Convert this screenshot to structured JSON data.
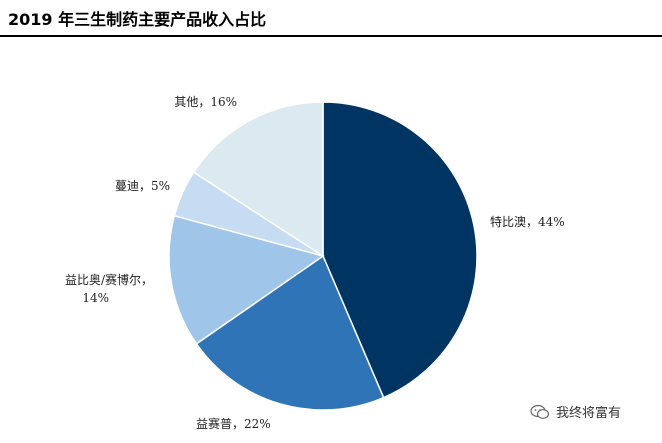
{
  "title": "2019 年三生制药主要产品收入占比",
  "watermark": "我终将富有",
  "chart_data": {
    "type": "pie",
    "title": "2019 年三生制药主要产品收入占比",
    "slices": [
      {
        "name": "特比澳",
        "value": 44,
        "label": "特比澳，44%",
        "color": "#003463"
      },
      {
        "name": "益赛普",
        "value": 22,
        "label": "益赛普，22%",
        "color": "#2f74b6"
      },
      {
        "name": "益比奥/赛博尔",
        "value": 14,
        "label": [
          "益比奥/赛博尔，",
          "14%"
        ],
        "color": "#9fc5e9"
      },
      {
        "name": "蔓迪",
        "value": 5,
        "label": "蔓迪，5%",
        "color": "#c5dcf2"
      },
      {
        "name": "其他",
        "value": 16,
        "label": "其他，16%",
        "color": "#dbeaf0"
      }
    ],
    "start_angle_deg": 0,
    "direction": "clockwise",
    "legend": "none"
  }
}
